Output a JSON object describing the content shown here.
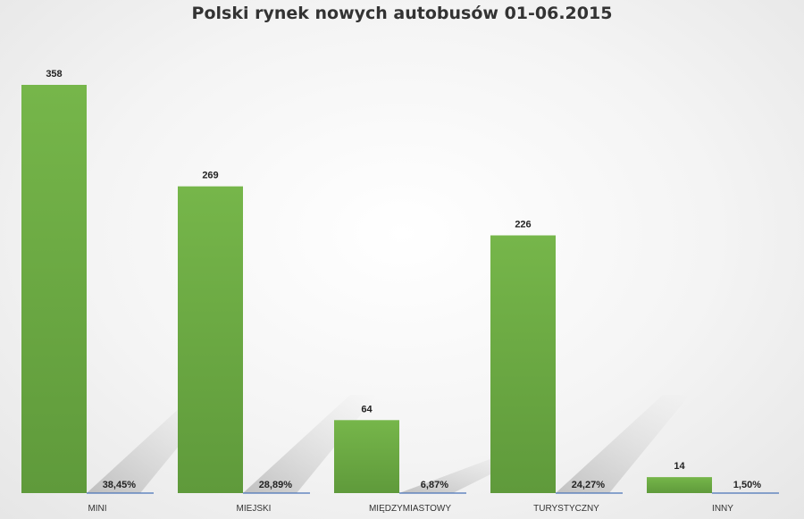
{
  "chart_data": {
    "type": "bar",
    "title": "Polski rynek nowych autobusów 01-06.2015",
    "categories": [
      "MINI",
      "MIEJSKI",
      "MIĘDZYMIASTOWY",
      "TURYSTYCZNY",
      "INNY"
    ],
    "values": [
      358,
      269,
      64,
      226,
      14
    ],
    "percent_labels": [
      "38,45%",
      "28,89%",
      "6,87%",
      "24,27%",
      "1,50%"
    ],
    "ylim": [
      0,
      358
    ],
    "grid": false,
    "legend": "none",
    "bar_color": "#6aa843",
    "percent_line_color": "#4a74b8"
  }
}
